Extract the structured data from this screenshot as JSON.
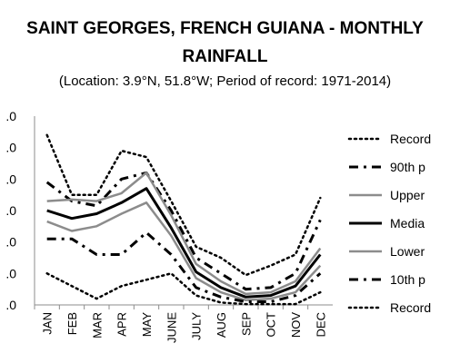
{
  "chart_data": {
    "type": "line",
    "title_line1": "SAINT GEORGES, FRENCH GUIANA - MONTHLY",
    "title_line2": "RAINFALL",
    "subtitle": "(Location: 3.9°N, 51.8°W; Period of record: 1971-2014)",
    "categories": [
      "JAN",
      "FEB",
      "MAR",
      "APR",
      "MAY",
      "JUNE",
      "JULY",
      "AUG",
      "SEP",
      "OCT",
      "NOV",
      "DEC"
    ],
    "y_tick_labels": [
      ".0",
      ".0",
      ".0",
      ".0",
      ".0",
      ".0",
      ".0"
    ],
    "ylim": [
      0,
      1200
    ],
    "grid": false,
    "legend_position": "right",
    "series": [
      {
        "name": "Record",
        "style": "dotted-thin",
        "color": "#000000",
        "values": [
          1080,
          700,
          700,
          980,
          940,
          660,
          370,
          300,
          190,
          250,
          320,
          680
        ]
      },
      {
        "name": "90th p",
        "style": "dashdot-thick",
        "color": "#000000",
        "values": [
          780,
          660,
          630,
          800,
          840,
          600,
          300,
          200,
          100,
          110,
          200,
          540
        ]
      },
      {
        "name": "Upper",
        "style": "solid",
        "color": "#8c8c8c",
        "values": [
          660,
          670,
          660,
          710,
          840,
          570,
          260,
          150,
          70,
          80,
          150,
          360
        ]
      },
      {
        "name": "Media",
        "style": "solid",
        "color": "#000000",
        "values": [
          600,
          550,
          580,
          650,
          740,
          490,
          210,
          110,
          50,
          60,
          120,
          320
        ]
      },
      {
        "name": "Lower",
        "style": "solid",
        "color": "#8c8c8c",
        "values": [
          530,
          470,
          500,
          580,
          650,
          440,
          170,
          80,
          30,
          40,
          80,
          250
        ]
      },
      {
        "name": "10th p",
        "style": "dashdot-thick",
        "color": "#000000",
        "values": [
          420,
          420,
          320,
          320,
          460,
          320,
          110,
          50,
          20,
          20,
          60,
          200
        ]
      },
      {
        "name": "Record",
        "style": "dotted-thin",
        "color": "#000000",
        "values": [
          200,
          120,
          40,
          120,
          160,
          200,
          60,
          15,
          5,
          5,
          5,
          80
        ]
      }
    ]
  }
}
